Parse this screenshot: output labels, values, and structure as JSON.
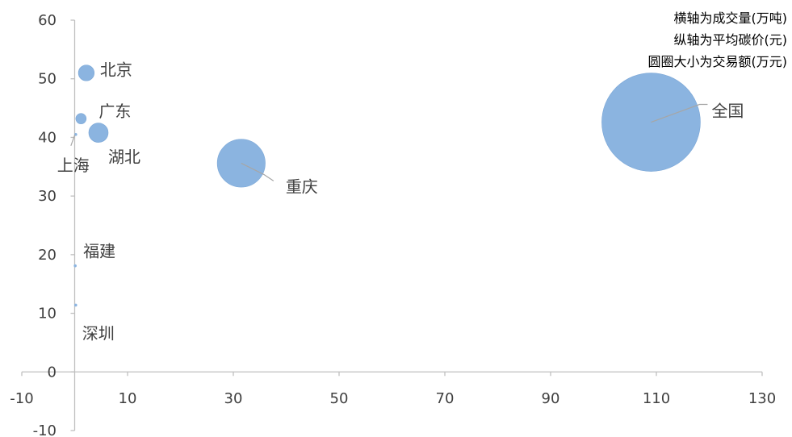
{
  "chart_data": {
    "type": "bubble",
    "xlim": [
      -10,
      130
    ],
    "ylim": [
      -10,
      60
    ],
    "x_ticks": [
      "-10",
      "10",
      "30",
      "50",
      "70",
      "90",
      "110",
      "130"
    ],
    "y_ticks": [
      "-10",
      "0",
      "10",
      "20",
      "30",
      "40",
      "50",
      "60"
    ],
    "x_tick_values": [
      -10,
      10,
      30,
      50,
      70,
      90,
      110,
      130
    ],
    "y_tick_values": [
      -10,
      0,
      10,
      20,
      30,
      40,
      50,
      60
    ],
    "annotations": [
      "横轴为成交量(万吨)",
      "纵轴为平均碳价(元)",
      "圆圈大小为交易额(万元)"
    ],
    "color": "#8bb4e0",
    "points": [
      {
        "name": "北京",
        "x": 2.2,
        "y": 51,
        "size": 120
      },
      {
        "name": "广东",
        "x": 1.2,
        "y": 43.2,
        "size": 52
      },
      {
        "name": "湖北",
        "x": 4.5,
        "y": 40.8,
        "size": 180
      },
      {
        "name": "上海",
        "x": 0.2,
        "y": 40.5,
        "size": 3
      },
      {
        "name": "重庆",
        "x": 31.5,
        "y": 35.6,
        "size": 1100
      },
      {
        "name": "福建",
        "x": 0.1,
        "y": 18.1,
        "size": 1
      },
      {
        "name": "深圳",
        "x": 0.2,
        "y": 11.4,
        "size": 1
      },
      {
        "name": "全国",
        "x": 109,
        "y": 42.6,
        "size": 4640
      }
    ]
  }
}
